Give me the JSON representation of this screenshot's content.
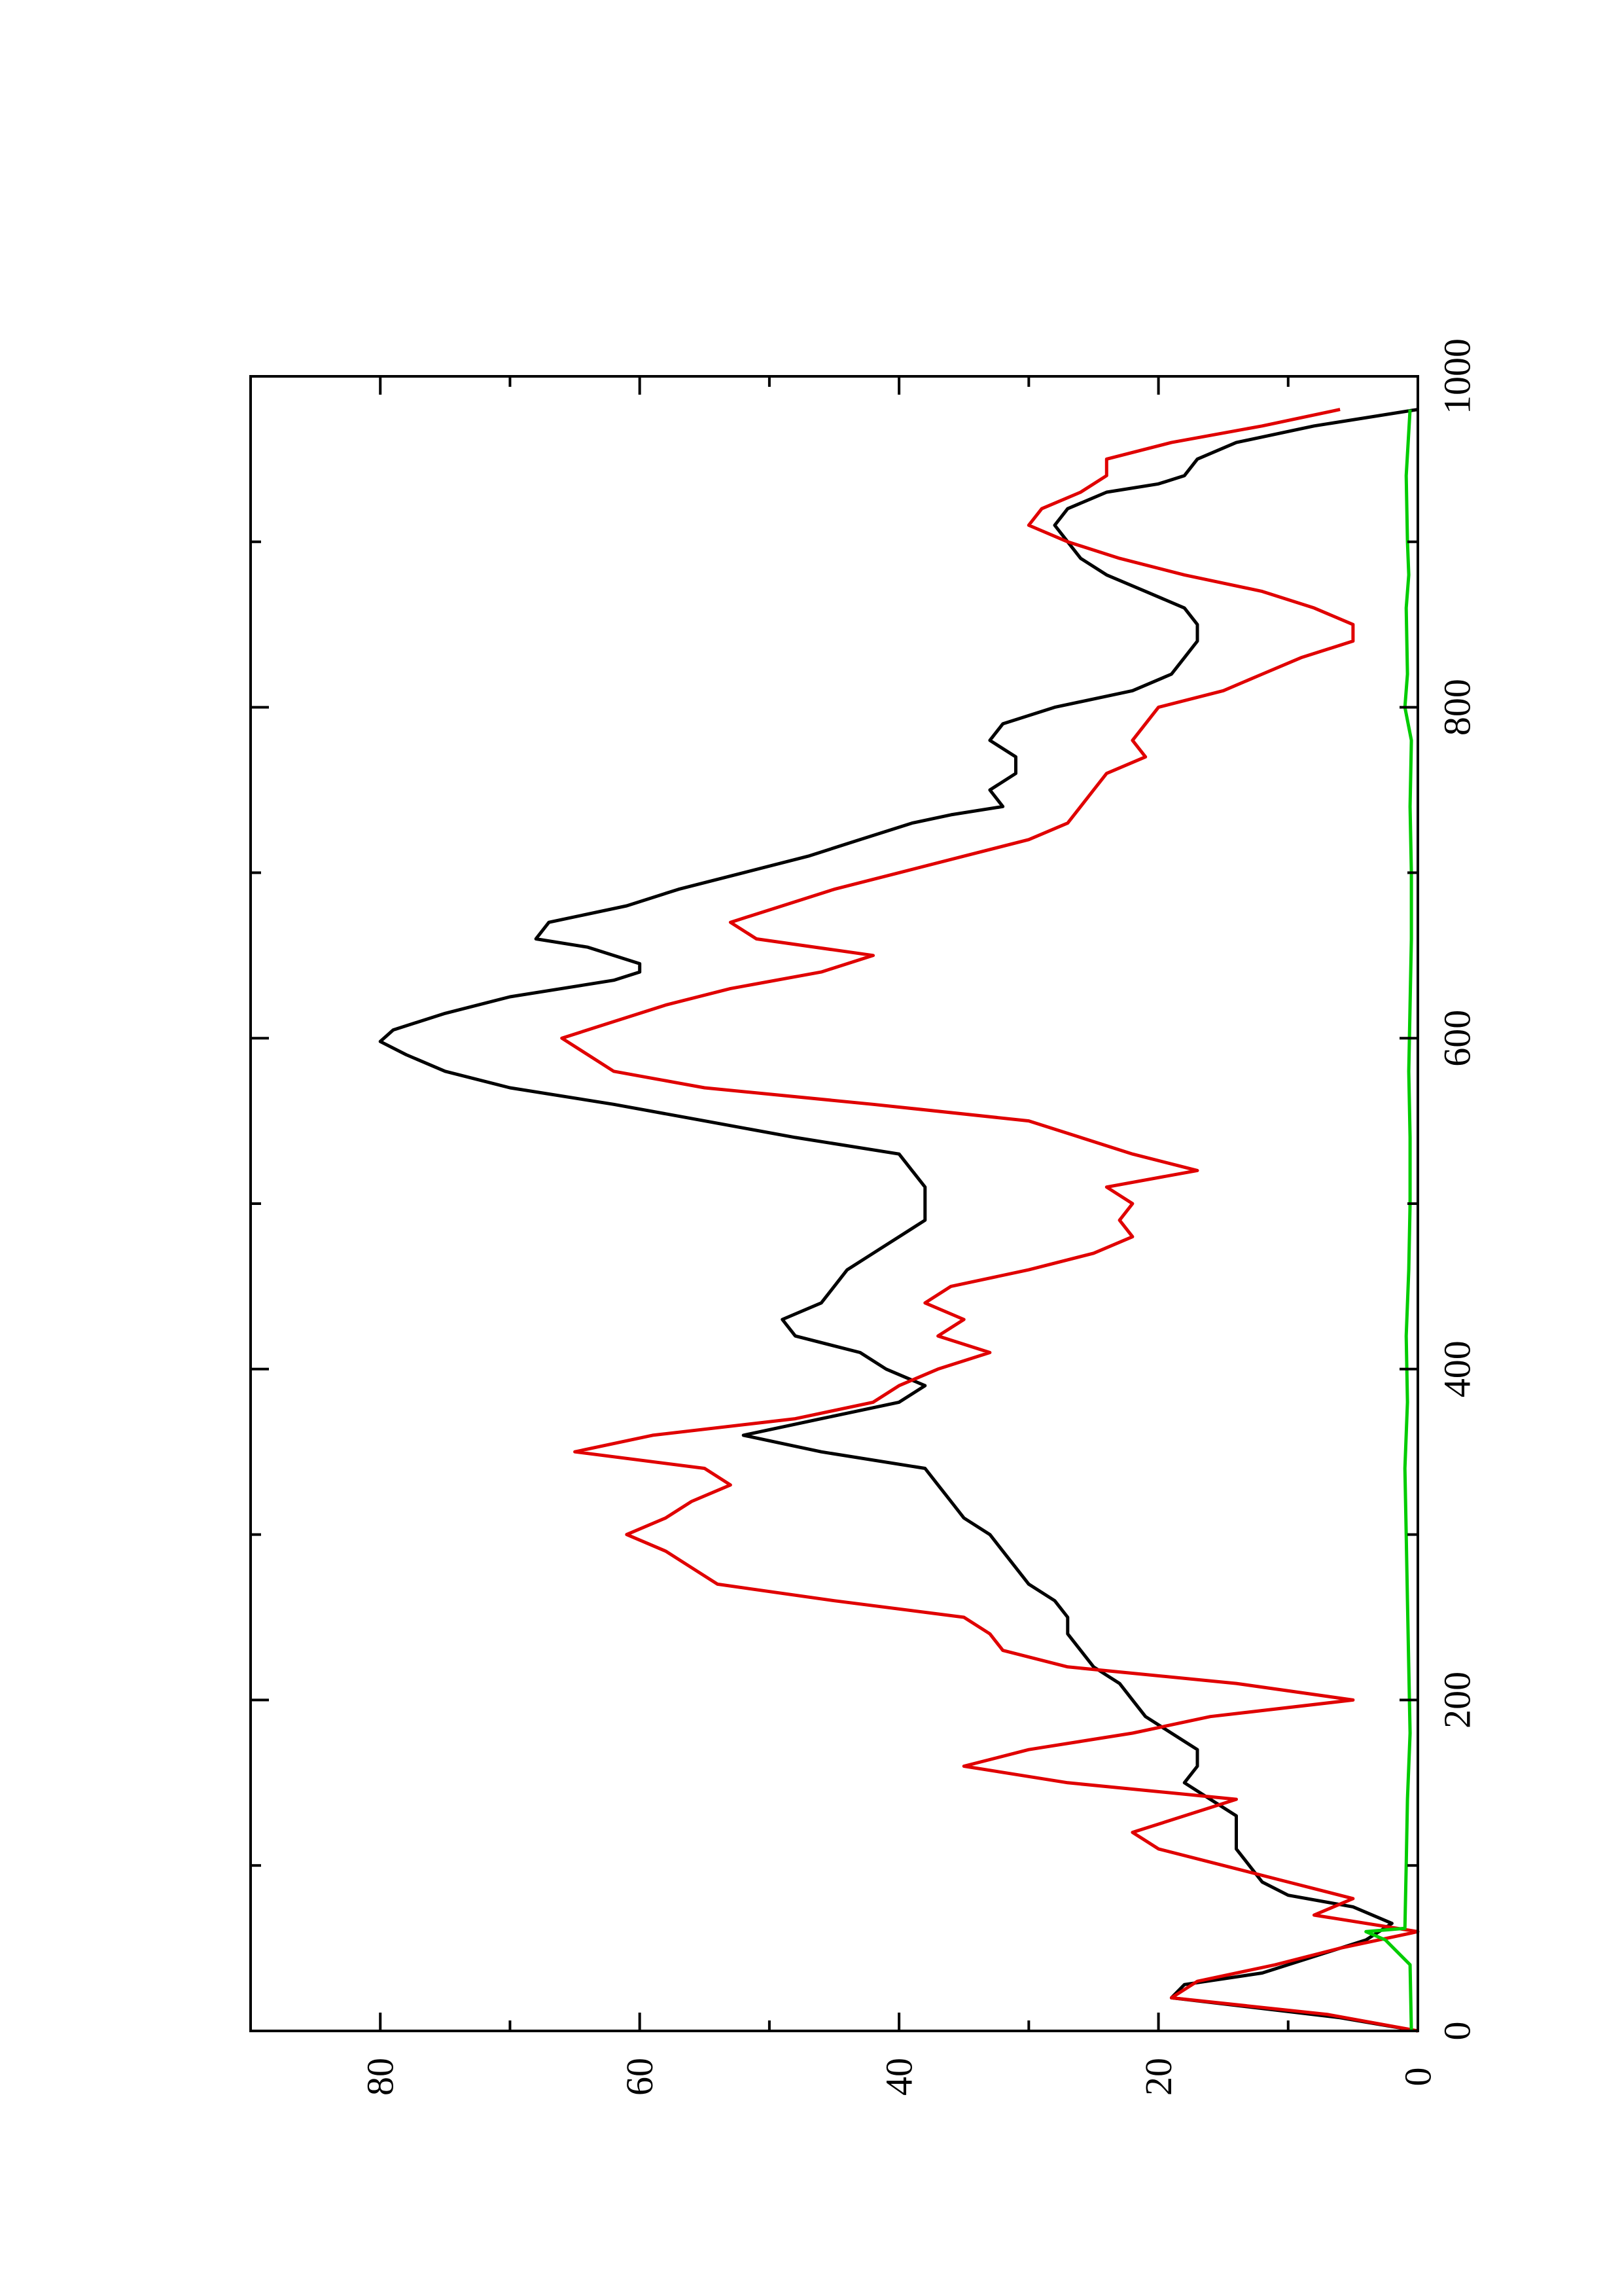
{
  "chart_data": {
    "type": "line",
    "title": "",
    "xlabel": "",
    "ylabel": "",
    "xlim": [
      0,
      1000
    ],
    "ylim": [
      0,
      90
    ],
    "x_ticks": [
      0,
      200,
      400,
      600,
      800,
      1000
    ],
    "x_tick_labels": [
      "0",
      "200",
      "400",
      "600",
      "800",
      "1000"
    ],
    "x_minor_ticks": [
      100,
      300,
      500,
      700,
      900
    ],
    "y_ticks": [
      0,
      20,
      40,
      60,
      80
    ],
    "y_tick_labels": [
      "0",
      "20",
      "40",
      "60",
      "80"
    ],
    "y_minor_ticks": [
      10,
      30,
      50,
      70
    ],
    "orientation": "rotated 90° counter-clockwise (x axis runs bottom to top, y axis runs right to left)",
    "grid": false,
    "legend": "none",
    "series": [
      {
        "color": "#000000",
        "x": [
          0,
          8,
          20,
          28,
          35,
          45,
          55,
          65,
          75,
          82,
          90,
          100,
          110,
          120,
          130,
          140,
          150,
          160,
          170,
          180,
          190,
          200,
          210,
          220,
          230,
          240,
          250,
          260,
          270,
          280,
          290,
          300,
          310,
          320,
          330,
          340,
          350,
          360,
          370,
          380,
          390,
          400,
          410,
          420,
          430,
          440,
          450,
          460,
          470,
          480,
          490,
          500,
          510,
          520,
          530,
          540,
          550,
          560,
          570,
          580,
          590,
          598,
          605,
          615,
          625,
          635,
          640,
          645,
          655,
          660,
          670,
          680,
          690,
          700,
          710,
          720,
          730,
          735,
          740,
          750,
          760,
          770,
          780,
          790,
          800,
          810,
          820,
          830,
          840,
          850,
          860,
          870,
          880,
          890,
          900,
          910,
          920,
          930,
          935,
          940,
          950,
          960,
          970,
          980
        ],
        "values": [
          0,
          6,
          19,
          18,
          12,
          8,
          4,
          2,
          5,
          10,
          12,
          13,
          14,
          14,
          14,
          16,
          18,
          17,
          17,
          19,
          21,
          22,
          23,
          25,
          26,
          27,
          27,
          28,
          30,
          31,
          32,
          33,
          35,
          36,
          37,
          38,
          46,
          52,
          46,
          40,
          38,
          41,
          43,
          48,
          49,
          46,
          45,
          44,
          42,
          40,
          38,
          38,
          38,
          39,
          40,
          48,
          55,
          62,
          70,
          75,
          78,
          80,
          79,
          75,
          70,
          62,
          60,
          60,
          64,
          68,
          67,
          61,
          57,
          52,
          47,
          43,
          39,
          36,
          32,
          33,
          31,
          31,
          33,
          32,
          28,
          22,
          19,
          18,
          17,
          17,
          18,
          21,
          24,
          26,
          27,
          28,
          27,
          24,
          20,
          18,
          17,
          14,
          8,
          0
        ]
      },
      {
        "color": "#e00000",
        "x": [
          0,
          10,
          20,
          30,
          40,
          50,
          60,
          70,
          80,
          90,
          100,
          110,
          120,
          130,
          140,
          150,
          160,
          170,
          180,
          190,
          200,
          210,
          220,
          230,
          240,
          250,
          260,
          270,
          280,
          290,
          300,
          310,
          320,
          330,
          340,
          350,
          360,
          370,
          380,
          390,
          400,
          410,
          420,
          430,
          440,
          450,
          460,
          470,
          480,
          490,
          500,
          510,
          520,
          530,
          540,
          550,
          560,
          570,
          580,
          590,
          600,
          610,
          620,
          630,
          640,
          650,
          660,
          670,
          680,
          690,
          700,
          710,
          720,
          730,
          740,
          750,
          760,
          770,
          780,
          790,
          800,
          810,
          820,
          830,
          840,
          850,
          860,
          870,
          880,
          890,
          900,
          910,
          920,
          930,
          940,
          950,
          960,
          970,
          980
        ],
        "values": [
          0,
          7,
          19,
          17,
          11,
          6,
          0,
          8,
          5,
          10,
          15,
          20,
          22,
          18,
          14,
          27,
          35,
          30,
          22,
          16,
          5,
          14,
          27,
          32,
          33,
          35,
          45,
          54,
          56,
          58,
          61,
          58,
          56,
          53,
          55,
          65,
          59,
          48,
          42,
          40,
          37,
          33,
          37,
          35,
          38,
          36,
          30,
          25,
          22,
          23,
          22,
          24,
          17,
          22,
          26,
          30,
          42,
          55,
          62,
          64,
          66,
          62,
          58,
          53,
          46,
          42,
          51,
          53,
          49,
          45,
          40,
          35,
          30,
          27,
          26,
          25,
          24,
          21,
          22,
          21,
          20,
          15,
          12,
          9,
          5,
          5,
          8,
          12,
          18,
          23,
          27,
          30,
          29,
          26,
          24,
          24,
          19,
          12,
          6
        ]
      },
      {
        "color": "#00cc00",
        "x": [
          0,
          40,
          55,
          60,
          62,
          100,
          140,
          180,
          220,
          260,
          300,
          340,
          380,
          420,
          460,
          500,
          540,
          580,
          620,
          660,
          700,
          740,
          780,
          800,
          820,
          860,
          880,
          900,
          940,
          980
        ],
        "values": [
          0.5,
          0.6,
          2.5,
          4.0,
          1.0,
          0.9,
          0.8,
          0.6,
          0.7,
          0.8,
          0.9,
          1.0,
          0.8,
          0.9,
          0.7,
          0.6,
          0.6,
          0.7,
          0.6,
          0.5,
          0.5,
          0.6,
          0.5,
          1.0,
          0.8,
          0.9,
          0.7,
          0.8,
          0.9,
          0.6
        ]
      }
    ]
  }
}
